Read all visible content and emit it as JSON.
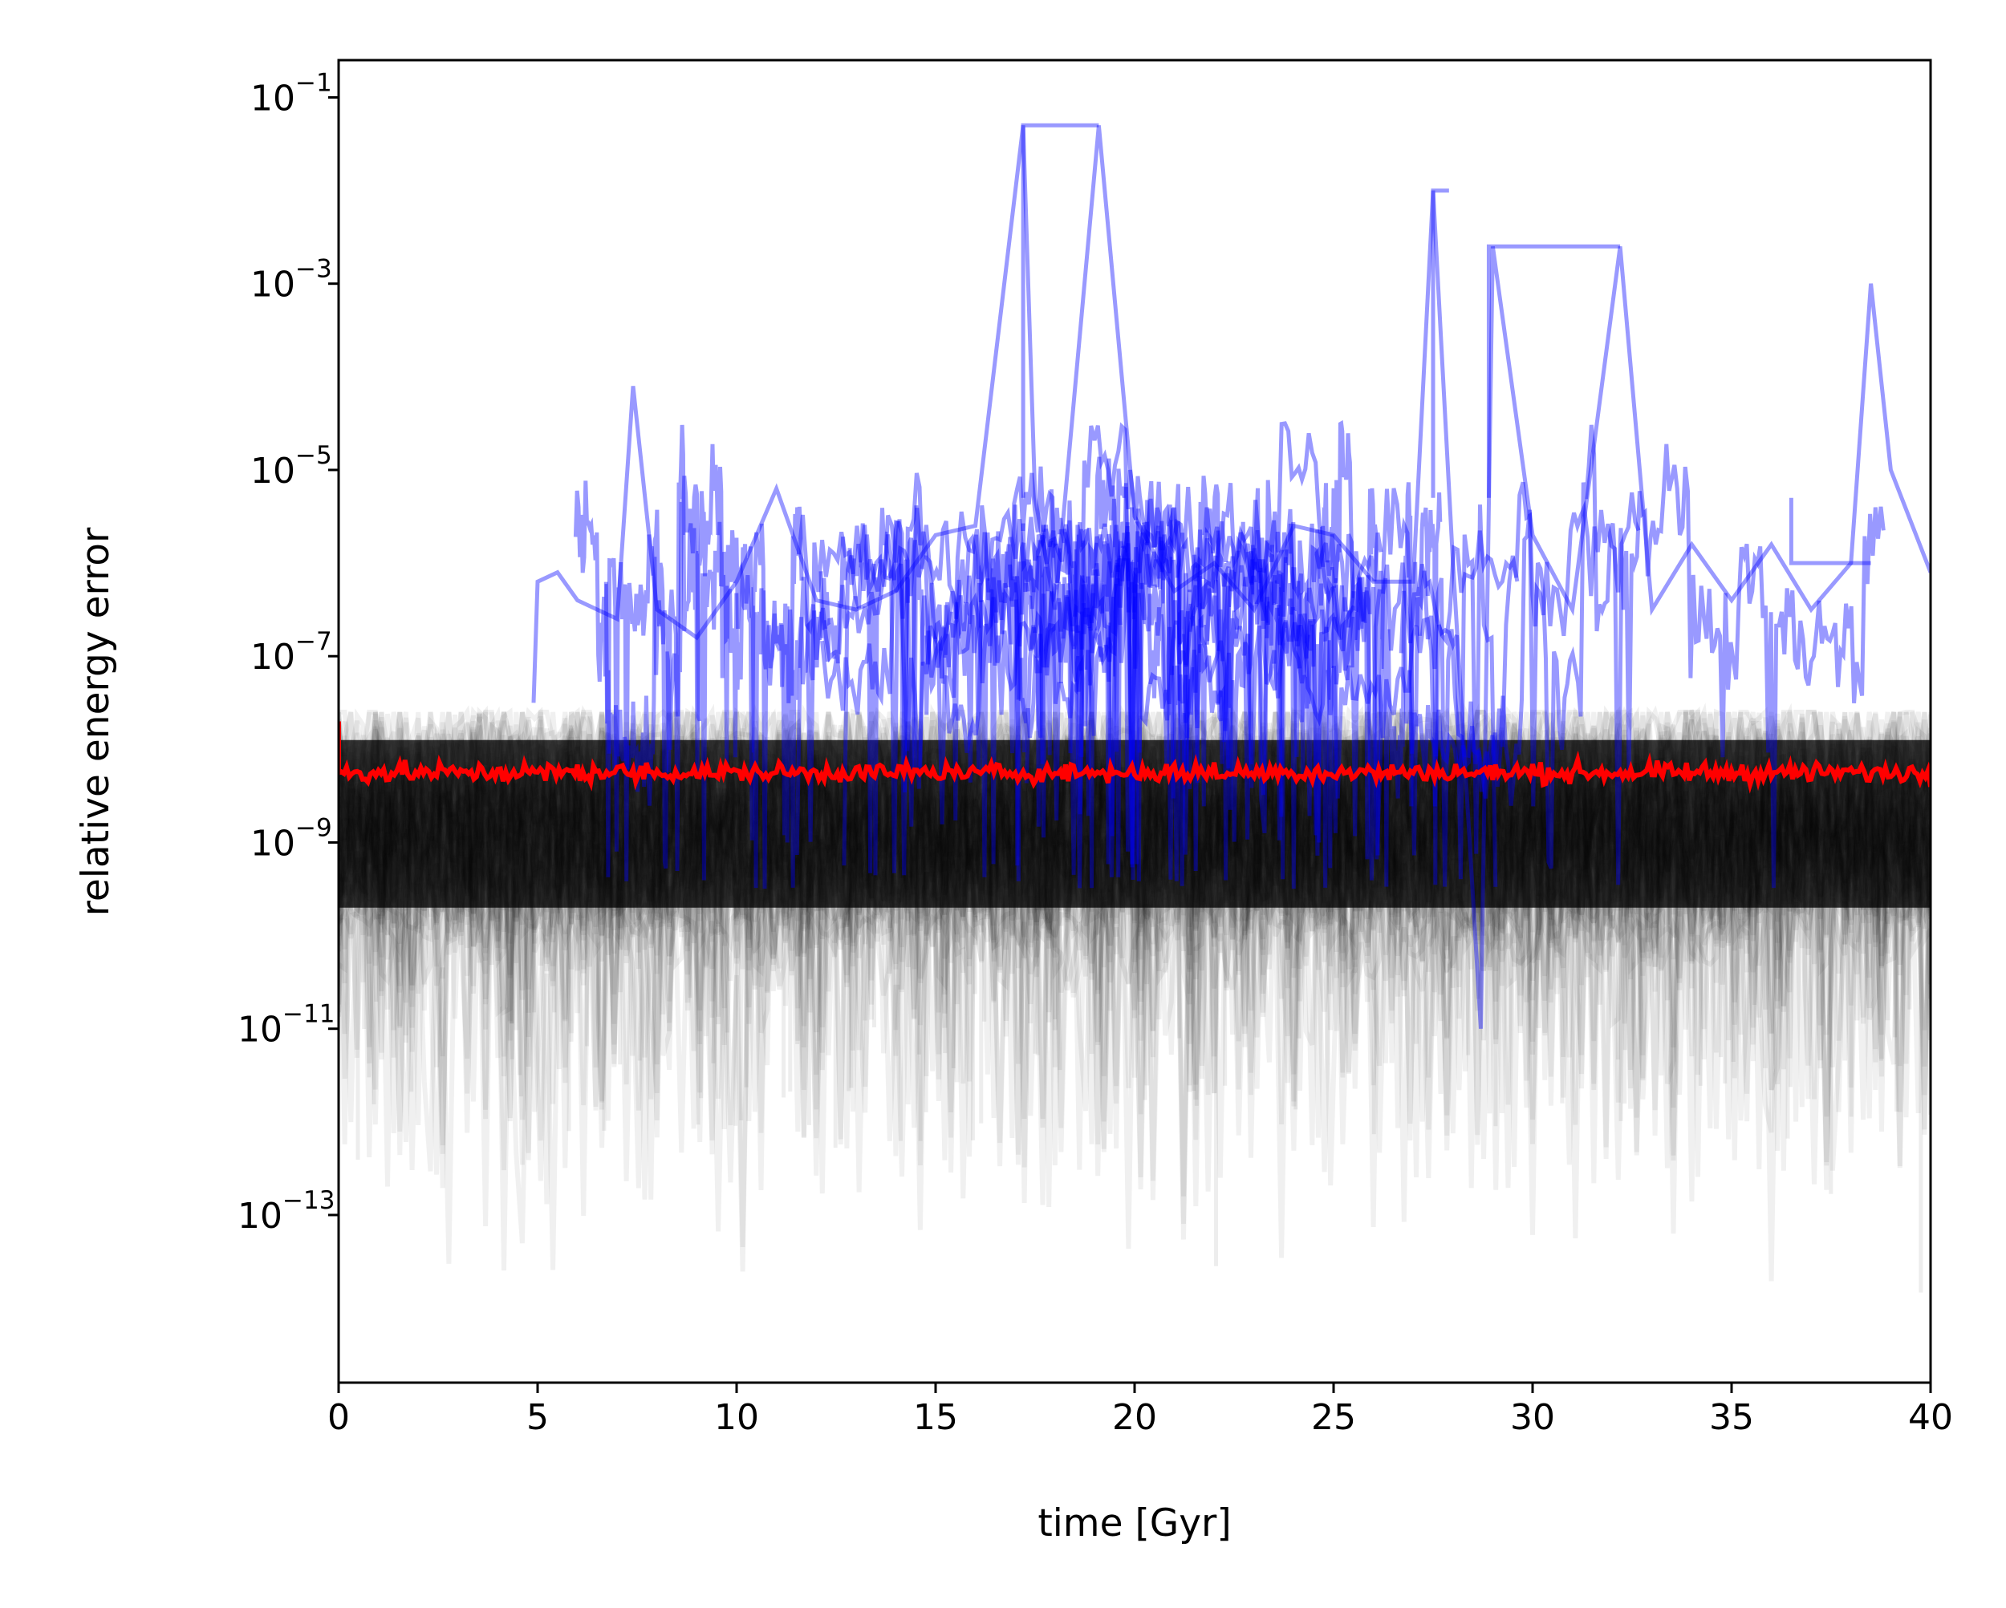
{
  "chart_data": {
    "type": "line",
    "title": "",
    "xlabel": "time [Gyr]",
    "ylabel": "relative energy error",
    "xlim": [
      0,
      40
    ],
    "ylim_log10": [
      -14.8,
      -0.6
    ],
    "y_scale": "log",
    "grid": false,
    "legend": "none",
    "x_ticks": [
      0,
      5,
      10,
      15,
      20,
      25,
      30,
      35,
      40
    ],
    "x_tick_labels": [
      "0",
      "5",
      "10",
      "15",
      "20",
      "25",
      "30",
      "35",
      "40"
    ],
    "y_ticks_log10": [
      -13,
      -11,
      -9,
      -7,
      -5,
      -3,
      -1
    ],
    "y_tick_bases": [
      "10",
      "10",
      "10",
      "10",
      "10",
      "10",
      "10"
    ],
    "y_tick_exponents": [
      "−13",
      "−11",
      "−9",
      "−7",
      "−5",
      "−3",
      "−1"
    ],
    "colors": {
      "ensemble": "#000000",
      "outliers": "#0000ff",
      "median": "#ff0000"
    },
    "series": [
      {
        "role": "ensemble",
        "description_values": "Many overlapping noisy traces spanning roughly 1e-11 to 3e-8 over 0-40 Gyr",
        "band_log10": {
          "upper": -7.6,
          "core_upper": -7.9,
          "core_lower": -9.7,
          "lower": -10.6,
          "spike_min": -14.2
        }
      },
      {
        "role": "outliers",
        "x": [
          0,
          4.9,
          5.0,
          5.5,
          6.0,
          7.0,
          7.4,
          8.0,
          9.0,
          10.0,
          11.0,
          12.0,
          13.0,
          14.0,
          15.0,
          16.0,
          17.2,
          17.5,
          18.0,
          19.1,
          20.0,
          21.0,
          22.0,
          23.0,
          24.0,
          25.0,
          26.0,
          27.0,
          27.5,
          28.0,
          28.7,
          29.0,
          30.0,
          31.0,
          32.2,
          33.0,
          34.0,
          35.0,
          36.0,
          37.0,
          38.0,
          38.5,
          39.0,
          40.0
        ],
        "y_log10": [
          null,
          -7.5,
          -6.2,
          -6.1,
          -6.4,
          -6.6,
          -4.1,
          -6.5,
          -6.8,
          -6.2,
          -5.2,
          -6.4,
          -6.5,
          -6.3,
          -5.7,
          -5.6,
          -1.3,
          -5.3,
          -6.5,
          -1.3,
          -5.5,
          -6.3,
          -6.0,
          -6.5,
          -5.6,
          -5.7,
          -6.2,
          -6.2,
          -2.0,
          -6.0,
          -11.0,
          -2.6,
          -5.7,
          -6.5,
          -2.6,
          -6.5,
          -5.8,
          -6.4,
          -5.8,
          -6.5,
          -6.0,
          -3.0,
          -5.0,
          -6.1
        ]
      },
      {
        "role": "median",
        "y_log10_mean": -8.25,
        "y_log10_start": -7.7
      }
    ]
  }
}
